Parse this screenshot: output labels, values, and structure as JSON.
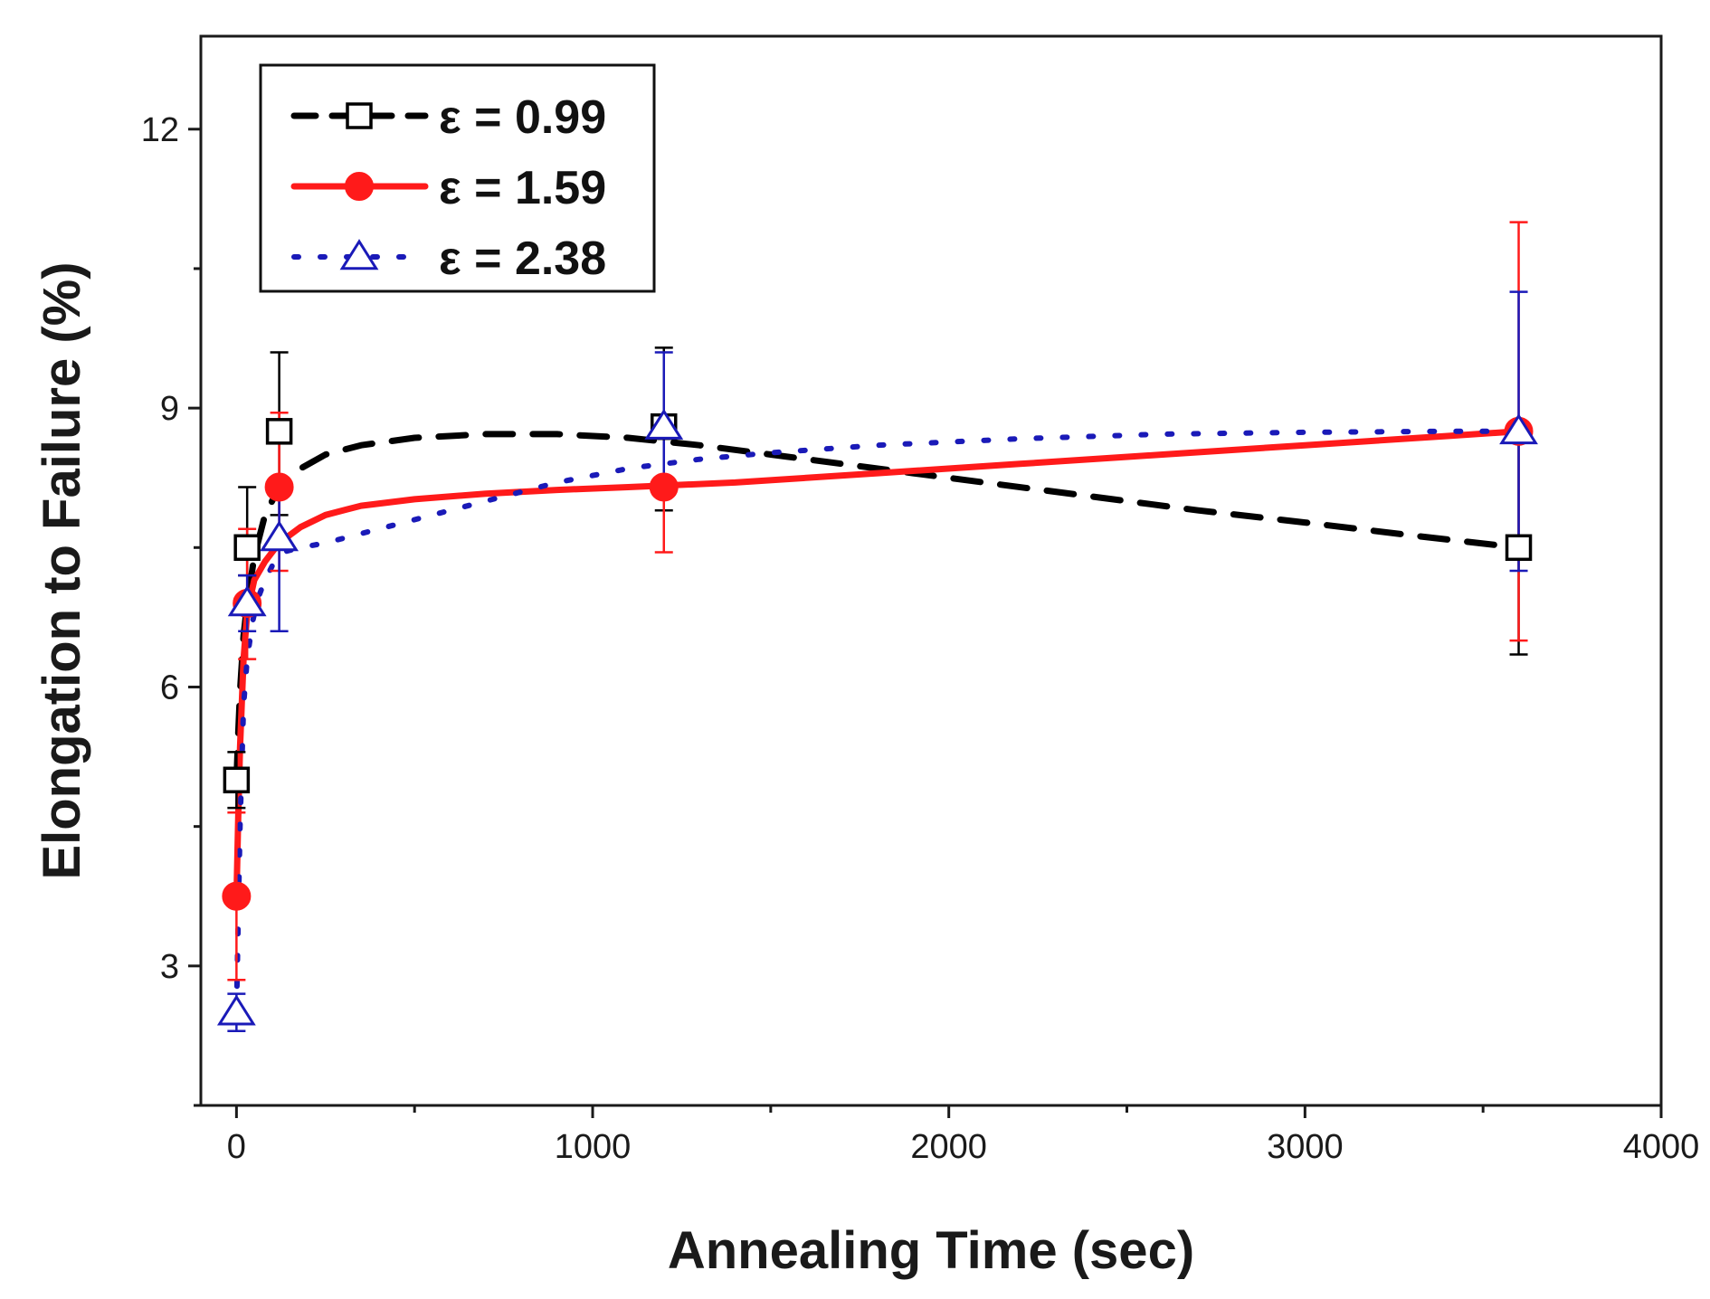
{
  "chart_data": {
    "type": "scatter",
    "title": "",
    "xlabel": "Annealing Time (sec)",
    "ylabel": "Elongation to Failure (%)",
    "xlim": [
      -100,
      4000
    ],
    "ylim": [
      1.5,
      13.0
    ],
    "xticks": [
      0,
      1000,
      2000,
      3000,
      4000
    ],
    "xticks_minor": [
      500,
      1500,
      2500,
      3500
    ],
    "yticks": [
      3,
      6,
      9,
      12
    ],
    "yticks_minor": [
      1.5,
      4.5,
      7.5,
      10.5
    ],
    "xtick_labels": [
      "0",
      "1000",
      "2000",
      "3000",
      "4000"
    ],
    "ytick_labels": [
      "3",
      "6",
      "9",
      "12"
    ],
    "grid": false,
    "legend_position": "top-left",
    "series": [
      {
        "name": "ε = 0.99",
        "color": "#000000",
        "line_style": "dashed",
        "marker": "open-square",
        "x": [
          0,
          30,
          120,
          1200,
          3600
        ],
        "y": [
          5.0,
          7.5,
          8.75,
          8.8,
          7.5
        ],
        "err_low": [
          0.3,
          0.3,
          0.9,
          0.9,
          1.15
        ],
        "err_high": [
          0.3,
          0.65,
          0.85,
          0.85,
          1.15
        ],
        "fit_x": [
          0,
          5,
          10,
          20,
          30,
          50,
          80,
          120,
          180,
          250,
          350,
          500,
          700,
          900,
          1100,
          1300,
          1500,
          1700,
          1900,
          2100,
          2400,
          2700,
          3000,
          3300,
          3600
        ],
        "fit_y": [
          5.0,
          5.5,
          5.95,
          6.55,
          6.9,
          7.4,
          7.85,
          8.15,
          8.35,
          8.5,
          8.6,
          8.68,
          8.72,
          8.72,
          8.68,
          8.6,
          8.5,
          8.4,
          8.3,
          8.2,
          8.05,
          7.9,
          7.77,
          7.63,
          7.5
        ]
      },
      {
        "name": "ε = 1.59",
        "color": "#ff1a1a",
        "line_style": "solid",
        "marker": "filled-circle",
        "x": [
          0,
          30,
          120,
          1200,
          3600
        ],
        "y": [
          3.75,
          6.9,
          8.15,
          8.15,
          8.75
        ],
        "err_low": [
          0.9,
          0.6,
          0.9,
          0.7,
          2.25
        ],
        "err_high": [
          0.9,
          0.8,
          0.8,
          0.7,
          2.25
        ],
        "fit_x": [
          0,
          5,
          10,
          20,
          30,
          50,
          80,
          120,
          180,
          250,
          350,
          500,
          700,
          900,
          1100,
          1400,
          1800,
          2200,
          2600,
          3000,
          3400,
          3600
        ],
        "fit_y": [
          3.75,
          4.6,
          5.35,
          6.3,
          6.8,
          7.15,
          7.35,
          7.55,
          7.72,
          7.85,
          7.95,
          8.02,
          8.08,
          8.12,
          8.15,
          8.2,
          8.3,
          8.4,
          8.5,
          8.6,
          8.7,
          8.75
        ]
      },
      {
        "name": "ε = 2.38",
        "color": "#1a1ab8",
        "line_style": "dotted",
        "marker": "open-triangle",
        "x": [
          0,
          30,
          120,
          1200,
          3600
        ],
        "y": [
          2.5,
          6.9,
          7.6,
          8.8,
          8.75
        ],
        "err_low": [
          0.2,
          0.3,
          1.0,
          0.7,
          1.5
        ],
        "err_high": [
          0.2,
          0.3,
          0.6,
          0.8,
          1.5
        ],
        "fit_x": [
          0,
          5,
          10,
          20,
          30,
          45,
          60,
          80,
          100,
          130,
          180,
          250,
          350,
          500,
          700,
          900,
          1100,
          1300,
          1500,
          1800,
          2200,
          2600,
          3000,
          3400,
          3600
        ],
        "fit_y": [
          2.5,
          3.5,
          4.5,
          5.8,
          6.3,
          6.7,
          6.95,
          7.15,
          7.3,
          7.45,
          7.5,
          7.55,
          7.65,
          7.8,
          8.0,
          8.2,
          8.35,
          8.45,
          8.52,
          8.6,
          8.67,
          8.72,
          8.74,
          8.75,
          8.75
        ]
      }
    ]
  }
}
